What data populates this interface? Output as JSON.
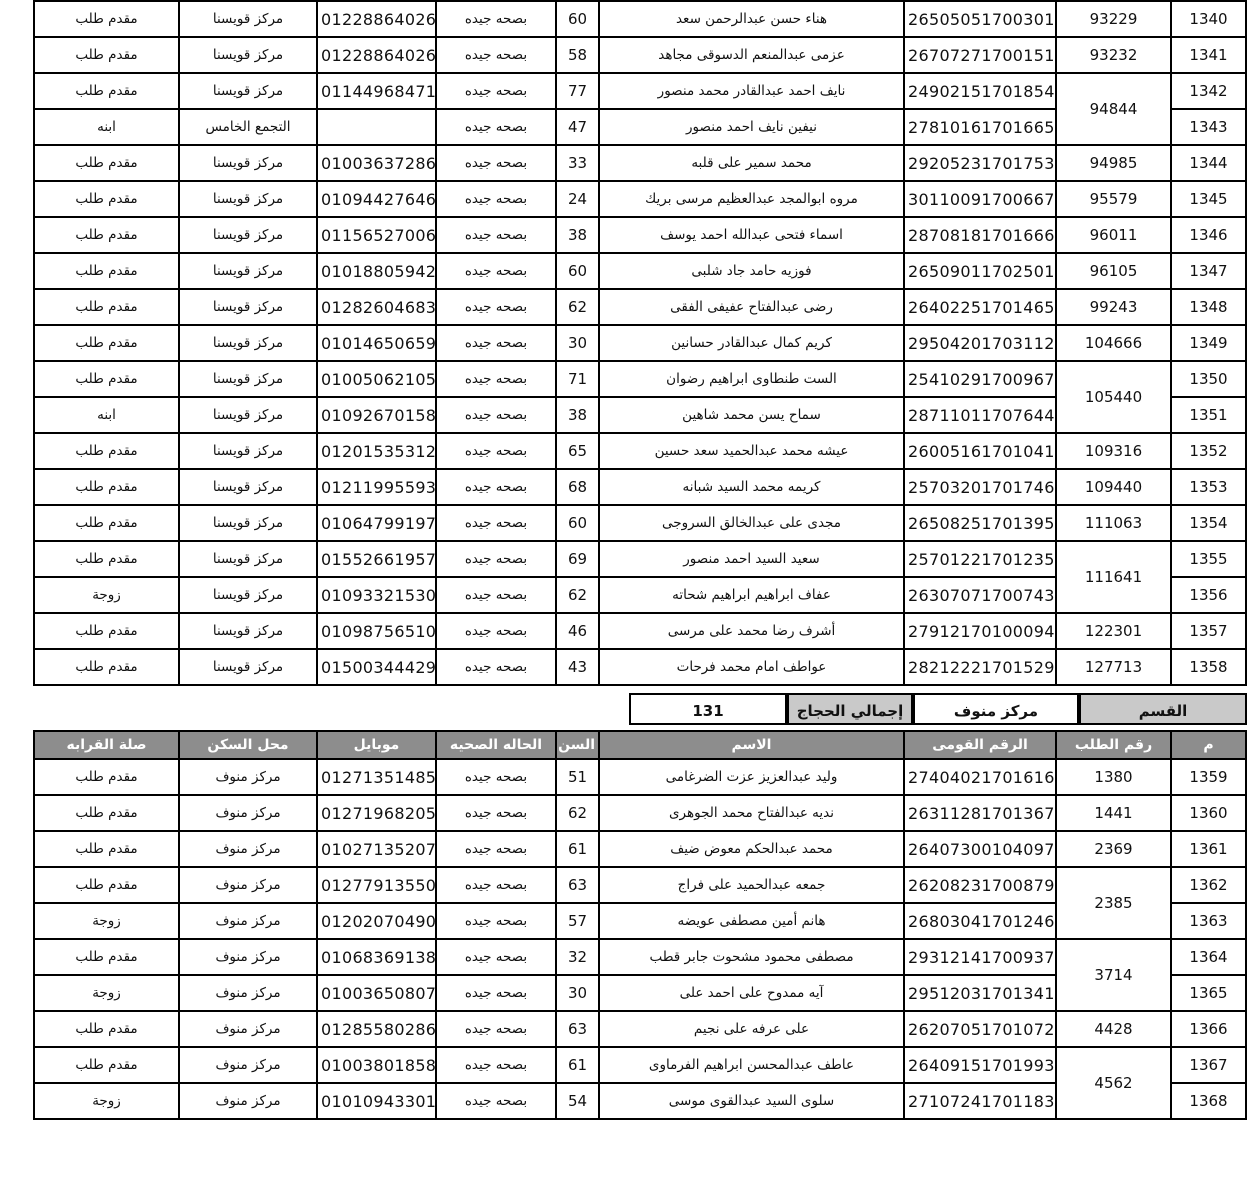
{
  "colors": {
    "header_bg": "#8d8d8d",
    "header_text": "#ffffff",
    "summary_label_bg": "#c9c9c9",
    "border": "#000000"
  },
  "columns": [
    "م",
    "رقم الطلب",
    "الرقم القومى",
    "الاسم",
    "السن",
    "الحاله الصحيه",
    "موبايل",
    "محل السكن",
    "صلة القرابه"
  ],
  "summary": {
    "department_label": "القسم",
    "department_value": "مركز منوف",
    "total_label": "إجمالي الحجاج",
    "total_value": "131"
  },
  "table1": {
    "rows": [
      {
        "m": "1340",
        "request": "93229",
        "request_span": 1,
        "national_id": "26505051700301",
        "name": "هناء حسن عبدالرحمن سعد",
        "age": "60",
        "health": "بصحه جيده",
        "mobile": "01228864026",
        "residence": "مركز قويسنا",
        "relation": "مقدم طلب"
      },
      {
        "m": "1341",
        "request": "93232",
        "request_span": 1,
        "national_id": "26707271700151",
        "name": "عزمى عبدالمنعم الدسوقى مجاهد",
        "age": "58",
        "health": "بصحه جيده",
        "mobile": "01228864026",
        "residence": "مركز قويسنا",
        "relation": "مقدم طلب"
      },
      {
        "m": "1342",
        "request": "94844",
        "request_span": 2,
        "national_id": "24902151701854",
        "name": "نايف احمد عبدالقادر محمد منصور",
        "age": "77",
        "health": "بصحه جيده",
        "mobile": "01144968471",
        "residence": "مركز قويسنا",
        "relation": "مقدم طلب"
      },
      {
        "m": "1343",
        "request": "",
        "request_span": 0,
        "national_id": "27810161701665",
        "name": "نيفين نايف احمد منصور",
        "age": "47",
        "health": "بصحه جيده",
        "mobile": "",
        "residence": "التجمع الخامس",
        "relation": "ابنه"
      },
      {
        "m": "1344",
        "request": "94985",
        "request_span": 1,
        "national_id": "29205231701753",
        "name": "محمد سمير على قلبه",
        "age": "33",
        "health": "بصحه جيده",
        "mobile": "01003637286",
        "residence": "مركز قويسنا",
        "relation": "مقدم طلب"
      },
      {
        "m": "1345",
        "request": "95579",
        "request_span": 1,
        "national_id": "30110091700667",
        "name": "مروه ابوالمجد عبدالعظيم مرسى بريك",
        "age": "24",
        "health": "بصحه جيده",
        "mobile": "01094427646",
        "residence": "مركز قويسنا",
        "relation": "مقدم طلب"
      },
      {
        "m": "1346",
        "request": "96011",
        "request_span": 1,
        "national_id": "28708181701666",
        "name": "اسماء فتحى عبدالله احمد يوسف",
        "age": "38",
        "health": "بصحه جيده",
        "mobile": "01156527006",
        "residence": "مركز قويسنا",
        "relation": "مقدم طلب"
      },
      {
        "m": "1347",
        "request": "96105",
        "request_span": 1,
        "national_id": "26509011702501",
        "name": "فوزيه حامد جاد شلبى",
        "age": "60",
        "health": "بصحه جيده",
        "mobile": "01018805942",
        "residence": "مركز قويسنا",
        "relation": "مقدم طلب"
      },
      {
        "m": "1348",
        "request": "99243",
        "request_span": 1,
        "national_id": "26402251701465",
        "name": "رضى عبدالفتاح عفيفى الفقى",
        "age": "62",
        "health": "بصحه جيده",
        "mobile": "01282604683",
        "residence": "مركز قويسنا",
        "relation": "مقدم طلب"
      },
      {
        "m": "1349",
        "request": "104666",
        "request_span": 1,
        "national_id": "29504201703112",
        "name": "كريم كمال عبدالقادر حسانين",
        "age": "30",
        "health": "بصحه جيده",
        "mobile": "01014650659",
        "residence": "مركز قويسنا",
        "relation": "مقدم طلب"
      },
      {
        "m": "1350",
        "request": "105440",
        "request_span": 2,
        "national_id": "25410291700967",
        "name": "الست طنطاوى ابراهيم رضوان",
        "age": "71",
        "health": "بصحه جيده",
        "mobile": "01005062105",
        "residence": "مركز قويسنا",
        "relation": "مقدم طلب"
      },
      {
        "m": "1351",
        "request": "",
        "request_span": 0,
        "national_id": "28711011707644",
        "name": "سماح يسن محمد شاهين",
        "age": "38",
        "health": "بصحه جيده",
        "mobile": "01092670158",
        "residence": "مركز قويسنا",
        "relation": "ابنه"
      },
      {
        "m": "1352",
        "request": "109316",
        "request_span": 1,
        "national_id": "26005161701041",
        "name": "عيشه محمد عبدالحميد سعد حسين",
        "age": "65",
        "health": "بصحه جيده",
        "mobile": "01201535312",
        "residence": "مركز قويسنا",
        "relation": "مقدم طلب"
      },
      {
        "m": "1353",
        "request": "109440",
        "request_span": 1,
        "national_id": "25703201701746",
        "name": "كريمه محمد السيد شبانه",
        "age": "68",
        "health": "بصحه جيده",
        "mobile": "01211995593",
        "residence": "مركز قويسنا",
        "relation": "مقدم طلب"
      },
      {
        "m": "1354",
        "request": "111063",
        "request_span": 1,
        "national_id": "26508251701395",
        "name": "مجدى على عبدالخالق السروجى",
        "age": "60",
        "health": "بصحه جيده",
        "mobile": "01064799197",
        "residence": "مركز قويسنا",
        "relation": "مقدم طلب"
      },
      {
        "m": "1355",
        "request": "111641",
        "request_span": 2,
        "national_id": "25701221701235",
        "name": "سعيد السيد احمد منصور",
        "age": "69",
        "health": "بصحه جيده",
        "mobile": "01552661957",
        "residence": "مركز قويسنا",
        "relation": "مقدم طلب"
      },
      {
        "m": "1356",
        "request": "",
        "request_span": 0,
        "national_id": "26307071700743",
        "name": "عفاف ابراهيم ابراهيم شحاته",
        "age": "62",
        "health": "بصحه جيده",
        "mobile": "01093321530",
        "residence": "مركز قويسنا",
        "relation": "زوجة"
      },
      {
        "m": "1357",
        "request": "122301",
        "request_span": 1,
        "national_id": "27912170100094",
        "name": "أشرف رضا محمد على مرسى",
        "age": "46",
        "health": "بصحه جيده",
        "mobile": "01098756510",
        "residence": "مركز قويسنا",
        "relation": "مقدم طلب"
      },
      {
        "m": "1358",
        "request": "127713",
        "request_span": 1,
        "national_id": "28212221701529",
        "name": "عواطف امام محمد فرحات",
        "age": "43",
        "health": "بصحه جيده",
        "mobile": "01500344429",
        "residence": "مركز قويسنا",
        "relation": "مقدم طلب"
      }
    ]
  },
  "table2": {
    "rows": [
      {
        "m": "1359",
        "request": "1380",
        "request_span": 1,
        "national_id": "27404021701616",
        "name": "وليد عبدالعزيز عزت الضرغامى",
        "age": "51",
        "health": "بصحه جيده",
        "mobile": "01271351485",
        "residence": "مركز منوف",
        "relation": "مقدم طلب"
      },
      {
        "m": "1360",
        "request": "1441",
        "request_span": 1,
        "national_id": "26311281701367",
        "name": "نديه عبدالفتاح محمد الجوهرى",
        "age": "62",
        "health": "بصحه جيده",
        "mobile": "01271968205",
        "residence": "مركز منوف",
        "relation": "مقدم طلب"
      },
      {
        "m": "1361",
        "request": "2369",
        "request_span": 1,
        "national_id": "26407300104097",
        "name": "محمد عبدالحكم معوض ضيف",
        "age": "61",
        "health": "بصحه جيده",
        "mobile": "01027135207",
        "residence": "مركز منوف",
        "relation": "مقدم طلب"
      },
      {
        "m": "1362",
        "request": "2385",
        "request_span": 2,
        "national_id": "26208231700879",
        "name": "جمعه عبدالحميد على فراج",
        "age": "63",
        "health": "بصحه جيده",
        "mobile": "01277913550",
        "residence": "مركز منوف",
        "relation": "مقدم طلب"
      },
      {
        "m": "1363",
        "request": "",
        "request_span": 0,
        "national_id": "26803041701246",
        "name": "هانم أمين مصطفى عويضه",
        "age": "57",
        "health": "بصحه جيده",
        "mobile": "01202070490",
        "residence": "مركز منوف",
        "relation": "زوجة"
      },
      {
        "m": "1364",
        "request": "3714",
        "request_span": 2,
        "national_id": "29312141700937",
        "name": "مصطفى محمود مشحوت جابر قطب",
        "age": "32",
        "health": "بصحه جيده",
        "mobile": "01068369138",
        "residence": "مركز منوف",
        "relation": "مقدم طلب"
      },
      {
        "m": "1365",
        "request": "",
        "request_span": 0,
        "national_id": "29512031701341",
        "name": "آيه ممدوح على احمد على",
        "age": "30",
        "health": "بصحه جيده",
        "mobile": "01003650807",
        "residence": "مركز منوف",
        "relation": "زوجة"
      },
      {
        "m": "1366",
        "request": "4428",
        "request_span": 1,
        "national_id": "26207051701072",
        "name": "على عرفه على نجيم",
        "age": "63",
        "health": "بصحه جيده",
        "mobile": "01285580286",
        "residence": "مركز منوف",
        "relation": "مقدم طلب"
      },
      {
        "m": "1367",
        "request": "4562",
        "request_span": 2,
        "national_id": "26409151701993",
        "name": "عاطف عبدالمحسن ابراهيم الفرماوى",
        "age": "61",
        "health": "بصحه جيده",
        "mobile": "01003801858",
        "residence": "مركز منوف",
        "relation": "مقدم طلب"
      },
      {
        "m": "1368",
        "request": "",
        "request_span": 0,
        "national_id": "27107241701183",
        "name": "سلوى السيد عبدالقوى موسى",
        "age": "54",
        "health": "بصحه جيده",
        "mobile": "01010943301",
        "residence": "مركز منوف",
        "relation": "زوجة"
      }
    ]
  }
}
